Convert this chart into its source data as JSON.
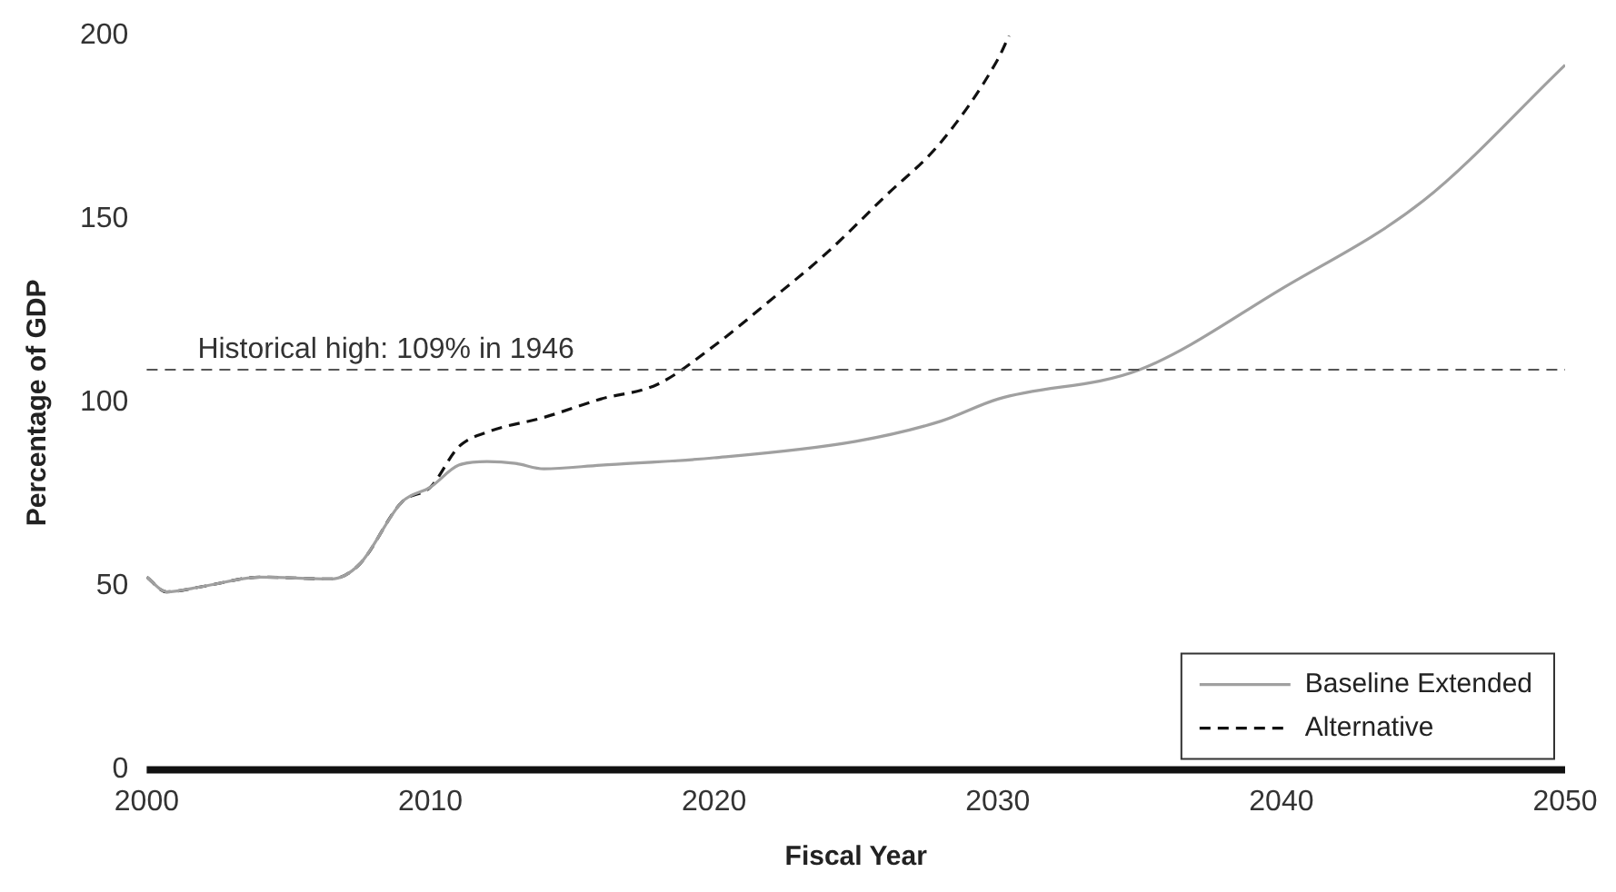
{
  "chart_data": {
    "type": "line",
    "xlabel": "Fiscal Year",
    "ylabel": "Percentage of GDP",
    "xlim": [
      2000,
      2050
    ],
    "xticks": [
      2000,
      2010,
      2020,
      2030,
      2040,
      2050
    ],
    "ylim": [
      0,
      200
    ],
    "yticks": [
      0,
      50,
      100,
      150,
      200
    ],
    "grid": false,
    "legend": "bottom right",
    "marker": "none",
    "ref_lines": [
      {
        "axis": "y",
        "value": 109,
        "label": "Historical high: 109% in 1946",
        "line_style": "dashed",
        "color": "#555555"
      }
    ],
    "series": [
      {
        "name": "Baseline Extended",
        "color": "#a0a0a0",
        "line_style": "solid",
        "x": [
          2000,
          2000.7,
          2002,
          2004,
          2006.5,
          2007.5,
          2009,
          2010,
          2011,
          2012,
          2013,
          2014,
          2016,
          2020,
          2025,
          2028,
          2030,
          2035,
          2040,
          2045,
          2050
        ],
        "values": [
          52.5,
          48.5,
          50,
          52.5,
          52,
          56,
          73,
          77,
          83,
          84,
          83.5,
          82,
          83,
          85,
          89.5,
          95,
          101,
          109,
          131,
          155,
          192
        ]
      },
      {
        "name": "Alternative",
        "color": "#111111",
        "line_style": "dashed",
        "x": [
          2000,
          2000.7,
          2002,
          2004,
          2006.5,
          2007.5,
          2009,
          2010,
          2011,
          2012,
          2014,
          2016,
          2018,
          2020,
          2022,
          2024,
          2026,
          2028,
          2030,
          2030.4
        ],
        "values": [
          52.5,
          48.5,
          50,
          52.5,
          52,
          56,
          73,
          77,
          88,
          92,
          96,
          101,
          105,
          115.5,
          128,
          141,
          156,
          171,
          193.5,
          200
        ]
      }
    ]
  }
}
